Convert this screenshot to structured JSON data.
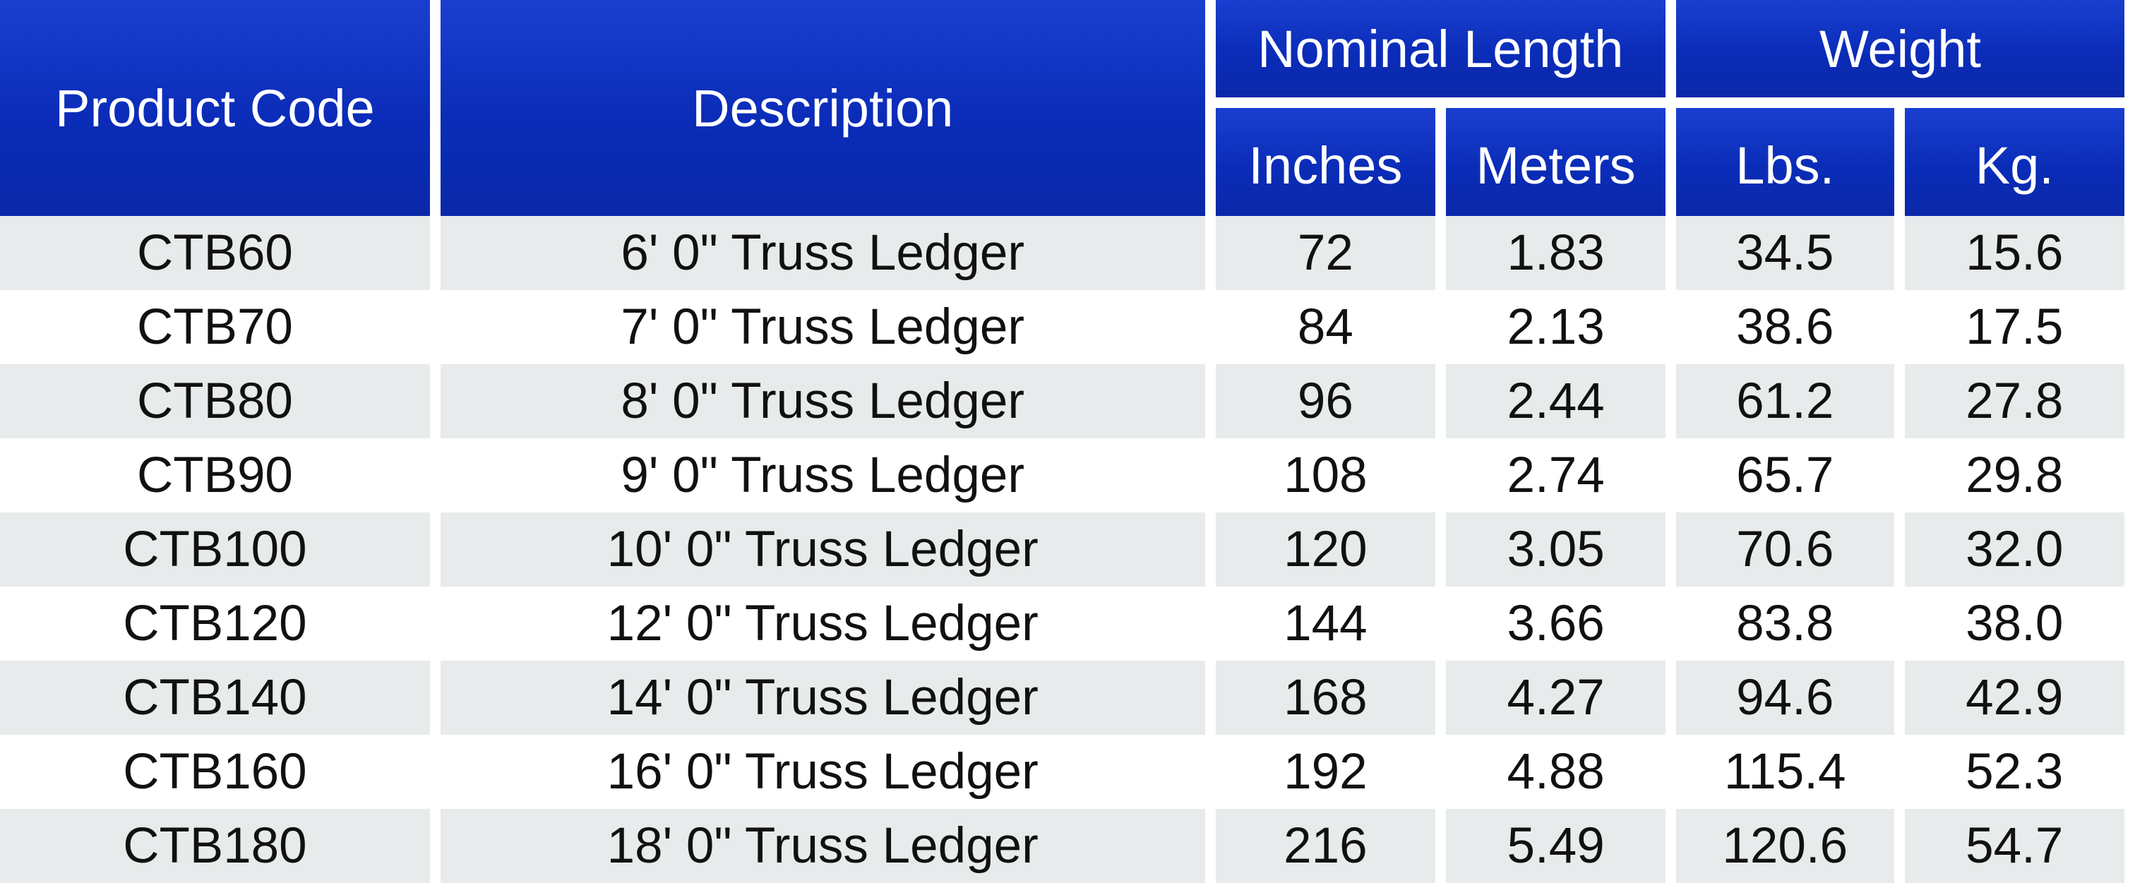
{
  "headers": {
    "product_code": "Product Code",
    "description": "Description",
    "nominal_length": "Nominal Length",
    "weight": "Weight",
    "inches": "Inches",
    "meters": "Meters",
    "lbs": "Lbs.",
    "kg": "Kg."
  },
  "rows": [
    {
      "code": "CTB60",
      "description": "6' 0\" Truss Ledger",
      "inches": "72",
      "meters": "1.83",
      "lbs": "34.5",
      "kg": "15.6"
    },
    {
      "code": "CTB70",
      "description": "7' 0\" Truss Ledger",
      "inches": "84",
      "meters": "2.13",
      "lbs": "38.6",
      "kg": "17.5"
    },
    {
      "code": "CTB80",
      "description": "8' 0\" Truss Ledger",
      "inches": "96",
      "meters": "2.44",
      "lbs": "61.2",
      "kg": "27.8"
    },
    {
      "code": "CTB90",
      "description": "9' 0\" Truss Ledger",
      "inches": "108",
      "meters": "2.74",
      "lbs": "65.7",
      "kg": "29.8"
    },
    {
      "code": "CTB100",
      "description": "10' 0\" Truss Ledger",
      "inches": "120",
      "meters": "3.05",
      "lbs": "70.6",
      "kg": "32.0"
    },
    {
      "code": "CTB120",
      "description": "12' 0\" Truss Ledger",
      "inches": "144",
      "meters": "3.66",
      "lbs": "83.8",
      "kg": "38.0"
    },
    {
      "code": "CTB140",
      "description": "14' 0\" Truss Ledger",
      "inches": "168",
      "meters": "4.27",
      "lbs": "94.6",
      "kg": "42.9"
    },
    {
      "code": "CTB160",
      "description": "16' 0\" Truss Ledger",
      "inches": "192",
      "meters": "4.88",
      "lbs": "115.4",
      "kg": "52.3"
    },
    {
      "code": "CTB180",
      "description": "18' 0\" Truss Ledger",
      "inches": "216",
      "meters": "5.49",
      "lbs": "120.6",
      "kg": "54.7"
    }
  ],
  "colors": {
    "header_blue": "#0a2cb8",
    "row_shade": "#e8ebeb",
    "header_text": "#ffffff"
  }
}
